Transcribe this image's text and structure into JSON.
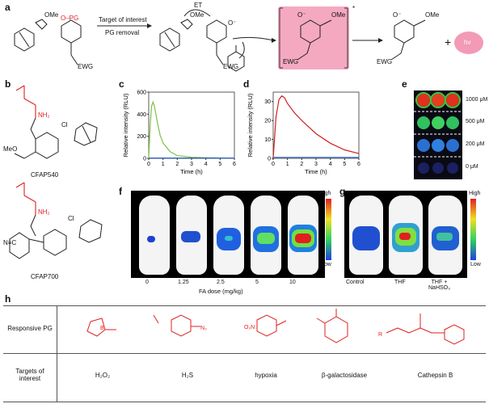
{
  "panel_labels": {
    "a": "a",
    "b": "b",
    "c": "c",
    "d": "d",
    "e": "e",
    "f": "f",
    "g": "g",
    "h": "h"
  },
  "scheme_a": {
    "pg": "O–PG",
    "ome": "OMe",
    "target": "Target of interest",
    "pg_removal": "PG removal",
    "ewg": "EWG",
    "et": "ET",
    "o_minus": "O⁻",
    "plus": "+",
    "hv": "hν",
    "star": "*"
  },
  "compounds": {
    "c1": "CFAP540",
    "c2": "CFAP700",
    "nh2": "NH₂",
    "cl": "Cl",
    "meo": "MeO",
    "cn": "N≡C"
  },
  "colors": {
    "pg_red": "#e02020",
    "glow": "#f29ab6",
    "green_curve": "#7fc24a",
    "red_curve": "#d02020",
    "blue_curve": "#2d63c8"
  },
  "chart_data": [
    {
      "type": "line",
      "panel": "c",
      "ylabel": "Relative intensity (RLU)",
      "xlabel": "Time (h)",
      "xlim": [
        0,
        6
      ],
      "ylim": [
        0,
        600
      ],
      "xticks": [
        0,
        1,
        2,
        3,
        4,
        5,
        6
      ],
      "yticks": [
        0,
        200,
        400,
        600
      ],
      "series": [
        {
          "color": "green",
          "x": [
            0,
            0.1,
            0.2,
            0.3,
            0.4,
            0.6,
            0.8,
            1,
            1.5,
            2,
            3,
            4,
            5,
            6
          ],
          "values": [
            0,
            300,
            470,
            510,
            470,
            330,
            210,
            140,
            60,
            25,
            10,
            6,
            4,
            3
          ]
        },
        {
          "color": "blue",
          "x": [
            0,
            6
          ],
          "values": [
            3,
            3
          ]
        }
      ]
    },
    {
      "type": "line",
      "panel": "d",
      "ylabel": "Relative intensity (RLU)",
      "xlabel": "Time (h)",
      "xlim": [
        0,
        6
      ],
      "ylim": [
        0,
        35
      ],
      "xticks": [
        0,
        1,
        2,
        3,
        4,
        5,
        6
      ],
      "yticks": [
        0,
        10,
        20,
        30
      ],
      "series": [
        {
          "color": "red",
          "x": [
            0,
            0.2,
            0.4,
            0.6,
            0.8,
            1,
            1.5,
            2,
            3,
            4,
            5,
            6
          ],
          "values": [
            0,
            22,
            31,
            33,
            32,
            29,
            24,
            20,
            13,
            8,
            4.5,
            2.5
          ]
        },
        {
          "color": "blue",
          "x": [
            0,
            6
          ],
          "values": [
            0.5,
            0.5
          ]
        }
      ]
    }
  ],
  "panel_e": {
    "labels": [
      "1000 μM",
      "500 μM",
      "200 μM",
      "0 μM"
    ]
  },
  "panel_f": {
    "doses": [
      "0",
      "1.25",
      "2.5",
      "5",
      "10"
    ],
    "xlabel": "FA dose (mg/kg)",
    "high": "High",
    "low": "Low"
  },
  "panel_g": {
    "conditions": [
      "Control",
      "THF",
      "THF +\nNaHSO₃"
    ],
    "high": "High",
    "low": "Low"
  },
  "panel_h": {
    "row1_label": "Responsive PG",
    "row2_label": "Targets of\ninterest",
    "targets": [
      "H₂O₂",
      "H₂S",
      "hypoxia",
      "β-galactosidase",
      "Cathepsin B"
    ]
  }
}
